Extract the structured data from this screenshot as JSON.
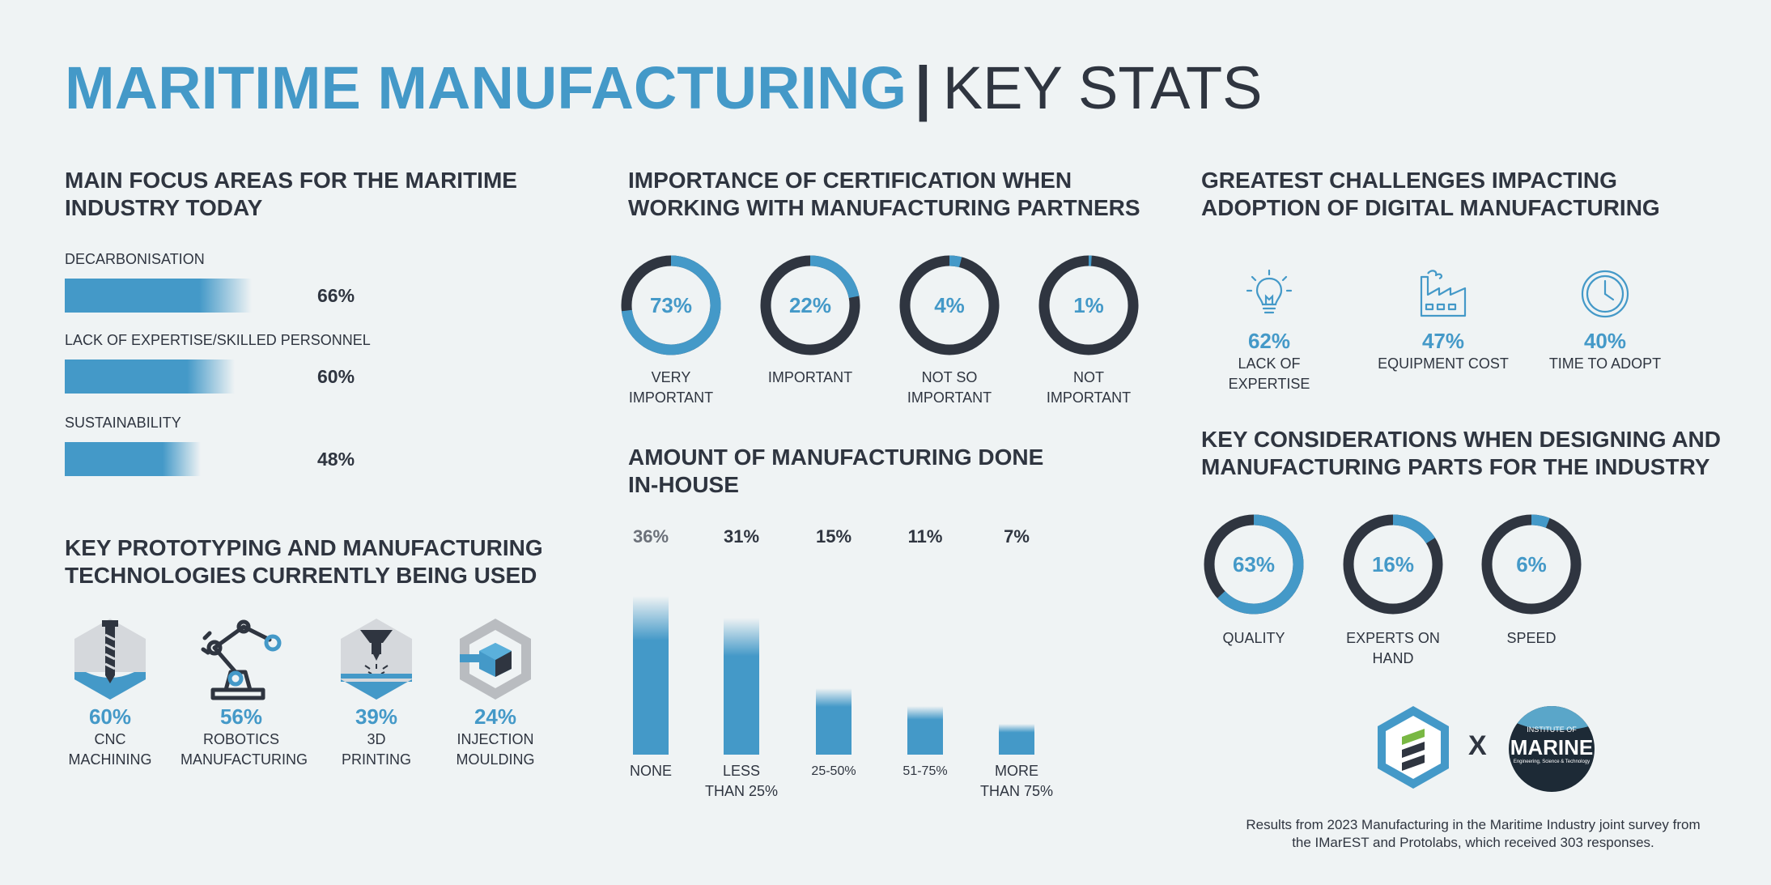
{
  "title": {
    "main": "MARITIME MANUFACTURING",
    "separator": "|",
    "sub": "KEY STATS"
  },
  "focus": {
    "heading": "MAIN FOCUS AREAS FOR THE MARITIME INDUSTRY TODAY",
    "items": [
      {
        "label": "DECARBONISATION",
        "value": "66%"
      },
      {
        "label": "LACK OF EXPERTISE/SKILLED PERSONNEL",
        "value": "60%"
      },
      {
        "label": "SUSTAINABILITY",
        "value": "48%"
      }
    ]
  },
  "certification": {
    "heading": "IMPORTANCE OF CERTIFICATION WHEN WORKING WITH MANUFACTURING PARTNERS",
    "items": [
      {
        "value": "73%",
        "line1": "VERY",
        "line2": "IMPORTANT"
      },
      {
        "value": "22%",
        "line1": "IMPORTANT",
        "line2": ""
      },
      {
        "value": "4%",
        "line1": "NOT SO",
        "line2": "IMPORTANT"
      },
      {
        "value": "1%",
        "line1": "NOT",
        "line2": "IMPORTANT"
      }
    ]
  },
  "challenges": {
    "heading": "GREATEST CHALLENGES IMPACTING ADOPTION OF DIGITAL MANUFACTURING",
    "items": [
      {
        "icon": "lightbulb-icon",
        "value": "62%",
        "label": "LACK OF EXPERTISE"
      },
      {
        "icon": "factory-icon",
        "value": "47%",
        "label": "EQUIPMENT COST"
      },
      {
        "icon": "clock-icon",
        "value": "40%",
        "label": "TIME TO ADOPT"
      }
    ]
  },
  "inhouse": {
    "heading_line1": "AMOUNT OF MANUFACTURING DONE",
    "heading_line2": "IN-HOUSE",
    "items": [
      {
        "value": "36%",
        "line1": "NONE",
        "line2": ""
      },
      {
        "value": "31%",
        "line1": "LESS",
        "line2": "THAN 25%"
      },
      {
        "value": "15%",
        "line1": "25-50%",
        "line2": ""
      },
      {
        "value": "11%",
        "line1": "51-75%",
        "line2": ""
      },
      {
        "value": "7%",
        "line1": "MORE",
        "line2": "THAN 75%"
      }
    ]
  },
  "technologies": {
    "heading": "KEY PROTOTYPING AND MANUFACTURING TECHNOLOGIES CURRENTLY BEING USED",
    "items": [
      {
        "icon": "cnc-drill-icon",
        "value": "60%",
        "line1": "CNC",
        "line2": "MACHINING"
      },
      {
        "icon": "robot-arm-icon",
        "value": "56%",
        "line1": "ROBOTICS",
        "line2": "MANUFACTURING"
      },
      {
        "icon": "3d-printer-icon",
        "value": "39%",
        "line1": "3D",
        "line2": "PRINTING"
      },
      {
        "icon": "injection-mould-icon",
        "value": "24%",
        "line1": "INJECTION",
        "line2": "MOULDING"
      }
    ]
  },
  "considerations": {
    "heading": "KEY CONSIDERATIONS WHEN DESIGNING AND MANUFACTURING PARTS FOR THE INDUSTRY",
    "items": [
      {
        "value": "63%",
        "line1": "QUALITY",
        "line2": ""
      },
      {
        "value": "16%",
        "line1": "EXPERTS ON",
        "line2": "HAND"
      },
      {
        "value": "6%",
        "line1": "SPEED",
        "line2": ""
      }
    ]
  },
  "logos": {
    "times": "X",
    "marine_top": "INSTITUTE OF",
    "marine_main": "MARINE",
    "marine_sub": "Engineering, Science & Technology"
  },
  "footer": {
    "line1": "Results from 2023 Manufacturing in the Maritime Industry joint survey from",
    "line2": "the IMarEST and Protolabs, which received 303 responses."
  },
  "colors": {
    "accent": "#4499c8",
    "dark": "#2f3540",
    "background": "#eff3f4"
  },
  "chart_data": [
    {
      "type": "bar",
      "orientation": "horizontal",
      "title": "MAIN FOCUS AREAS FOR THE MARITIME INDUSTRY TODAY",
      "categories": [
        "DECARBONISATION",
        "LACK OF EXPERTISE/SKILLED PERSONNEL",
        "SUSTAINABILITY"
      ],
      "values": [
        66,
        60,
        48
      ]
    },
    {
      "type": "pie",
      "title": "IMPORTANCE OF CERTIFICATION WHEN WORKING WITH MANUFACTURING PARTNERS",
      "categories": [
        "VERY IMPORTANT",
        "IMPORTANT",
        "NOT SO IMPORTANT",
        "NOT IMPORTANT"
      ],
      "values": [
        73,
        22,
        4,
        1
      ]
    },
    {
      "type": "table",
      "title": "GREATEST CHALLENGES IMPACTING ADOPTION OF DIGITAL MANUFACTURING",
      "categories": [
        "LACK OF EXPERTISE",
        "EQUIPMENT COST",
        "TIME TO ADOPT"
      ],
      "values": [
        62,
        47,
        40
      ]
    },
    {
      "type": "bar",
      "title": "AMOUNT OF MANUFACTURING DONE IN-HOUSE",
      "categories": [
        "NONE",
        "LESS THAN 25%",
        "25-50%",
        "51-75%",
        "MORE THAN 75%"
      ],
      "values": [
        36,
        31,
        15,
        11,
        7
      ]
    },
    {
      "type": "table",
      "title": "KEY PROTOTYPING AND MANUFACTURING TECHNOLOGIES CURRENTLY BEING USED",
      "categories": [
        "CNC MACHINING",
        "ROBOTICS MANUFACTURING",
        "3D PRINTING",
        "INJECTION MOULDING"
      ],
      "values": [
        60,
        56,
        39,
        24
      ]
    },
    {
      "type": "pie",
      "title": "KEY CONSIDERATIONS WHEN DESIGNING AND MANUFACTURING PARTS FOR THE INDUSTRY",
      "categories": [
        "QUALITY",
        "EXPERTS ON HAND",
        "SPEED"
      ],
      "values": [
        63,
        16,
        6
      ]
    }
  ]
}
